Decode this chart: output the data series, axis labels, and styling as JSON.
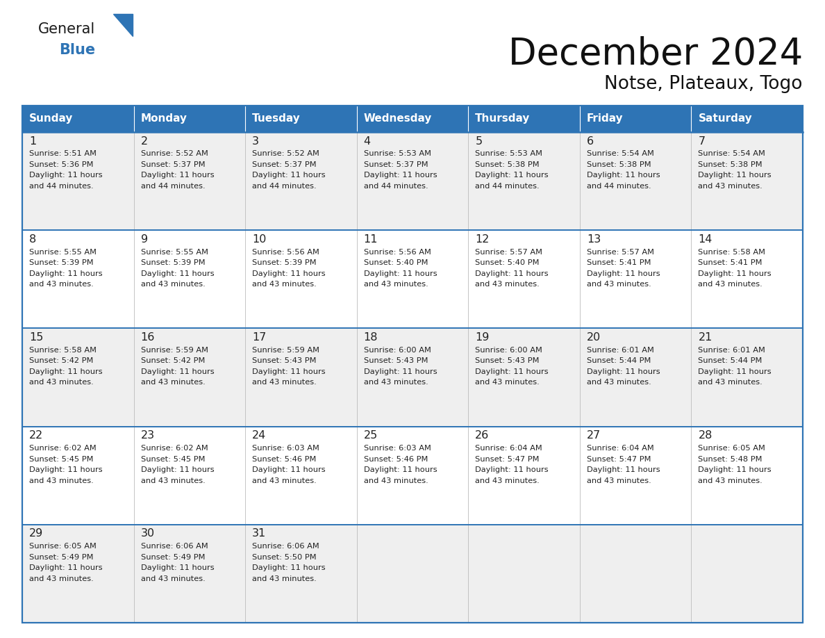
{
  "title": "December 2024",
  "subtitle": "Notse, Plateaux, Togo",
  "days_of_week": [
    "Sunday",
    "Monday",
    "Tuesday",
    "Wednesday",
    "Thursday",
    "Friday",
    "Saturday"
  ],
  "header_bg": "#2E74B5",
  "header_text": "#FFFFFF",
  "row_bg_odd": "#EFEFEF",
  "row_bg_even": "#FFFFFF",
  "border_color": "#2E74B5",
  "cell_border_color": "#BBBBBB",
  "text_color": "#222222",
  "title_color": "#1a1a1a",
  "calendar_data": [
    [
      {
        "day": 1,
        "sunrise": "5:51 AM",
        "sunset": "5:36 PM",
        "daylight_hrs": 11,
        "daylight_min": 44
      },
      {
        "day": 2,
        "sunrise": "5:52 AM",
        "sunset": "5:37 PM",
        "daylight_hrs": 11,
        "daylight_min": 44
      },
      {
        "day": 3,
        "sunrise": "5:52 AM",
        "sunset": "5:37 PM",
        "daylight_hrs": 11,
        "daylight_min": 44
      },
      {
        "day": 4,
        "sunrise": "5:53 AM",
        "sunset": "5:37 PM",
        "daylight_hrs": 11,
        "daylight_min": 44
      },
      {
        "day": 5,
        "sunrise": "5:53 AM",
        "sunset": "5:38 PM",
        "daylight_hrs": 11,
        "daylight_min": 44
      },
      {
        "day": 6,
        "sunrise": "5:54 AM",
        "sunset": "5:38 PM",
        "daylight_hrs": 11,
        "daylight_min": 44
      },
      {
        "day": 7,
        "sunrise": "5:54 AM",
        "sunset": "5:38 PM",
        "daylight_hrs": 11,
        "daylight_min": 43
      }
    ],
    [
      {
        "day": 8,
        "sunrise": "5:55 AM",
        "sunset": "5:39 PM",
        "daylight_hrs": 11,
        "daylight_min": 43
      },
      {
        "day": 9,
        "sunrise": "5:55 AM",
        "sunset": "5:39 PM",
        "daylight_hrs": 11,
        "daylight_min": 43
      },
      {
        "day": 10,
        "sunrise": "5:56 AM",
        "sunset": "5:39 PM",
        "daylight_hrs": 11,
        "daylight_min": 43
      },
      {
        "day": 11,
        "sunrise": "5:56 AM",
        "sunset": "5:40 PM",
        "daylight_hrs": 11,
        "daylight_min": 43
      },
      {
        "day": 12,
        "sunrise": "5:57 AM",
        "sunset": "5:40 PM",
        "daylight_hrs": 11,
        "daylight_min": 43
      },
      {
        "day": 13,
        "sunrise": "5:57 AM",
        "sunset": "5:41 PM",
        "daylight_hrs": 11,
        "daylight_min": 43
      },
      {
        "day": 14,
        "sunrise": "5:58 AM",
        "sunset": "5:41 PM",
        "daylight_hrs": 11,
        "daylight_min": 43
      }
    ],
    [
      {
        "day": 15,
        "sunrise": "5:58 AM",
        "sunset": "5:42 PM",
        "daylight_hrs": 11,
        "daylight_min": 43
      },
      {
        "day": 16,
        "sunrise": "5:59 AM",
        "sunset": "5:42 PM",
        "daylight_hrs": 11,
        "daylight_min": 43
      },
      {
        "day": 17,
        "sunrise": "5:59 AM",
        "sunset": "5:43 PM",
        "daylight_hrs": 11,
        "daylight_min": 43
      },
      {
        "day": 18,
        "sunrise": "6:00 AM",
        "sunset": "5:43 PM",
        "daylight_hrs": 11,
        "daylight_min": 43
      },
      {
        "day": 19,
        "sunrise": "6:00 AM",
        "sunset": "5:43 PM",
        "daylight_hrs": 11,
        "daylight_min": 43
      },
      {
        "day": 20,
        "sunrise": "6:01 AM",
        "sunset": "5:44 PM",
        "daylight_hrs": 11,
        "daylight_min": 43
      },
      {
        "day": 21,
        "sunrise": "6:01 AM",
        "sunset": "5:44 PM",
        "daylight_hrs": 11,
        "daylight_min": 43
      }
    ],
    [
      {
        "day": 22,
        "sunrise": "6:02 AM",
        "sunset": "5:45 PM",
        "daylight_hrs": 11,
        "daylight_min": 43
      },
      {
        "day": 23,
        "sunrise": "6:02 AM",
        "sunset": "5:45 PM",
        "daylight_hrs": 11,
        "daylight_min": 43
      },
      {
        "day": 24,
        "sunrise": "6:03 AM",
        "sunset": "5:46 PM",
        "daylight_hrs": 11,
        "daylight_min": 43
      },
      {
        "day": 25,
        "sunrise": "6:03 AM",
        "sunset": "5:46 PM",
        "daylight_hrs": 11,
        "daylight_min": 43
      },
      {
        "day": 26,
        "sunrise": "6:04 AM",
        "sunset": "5:47 PM",
        "daylight_hrs": 11,
        "daylight_min": 43
      },
      {
        "day": 27,
        "sunrise": "6:04 AM",
        "sunset": "5:47 PM",
        "daylight_hrs": 11,
        "daylight_min": 43
      },
      {
        "day": 28,
        "sunrise": "6:05 AM",
        "sunset": "5:48 PM",
        "daylight_hrs": 11,
        "daylight_min": 43
      }
    ],
    [
      {
        "day": 29,
        "sunrise": "6:05 AM",
        "sunset": "5:49 PM",
        "daylight_hrs": 11,
        "daylight_min": 43
      },
      {
        "day": 30,
        "sunrise": "6:06 AM",
        "sunset": "5:49 PM",
        "daylight_hrs": 11,
        "daylight_min": 43
      },
      {
        "day": 31,
        "sunrise": "6:06 AM",
        "sunset": "5:50 PM",
        "daylight_hrs": 11,
        "daylight_min": 43
      },
      null,
      null,
      null,
      null
    ]
  ],
  "logo_triangle_color": "#2E74B5",
  "fig_width": 11.88,
  "fig_height": 9.18,
  "dpi": 100
}
